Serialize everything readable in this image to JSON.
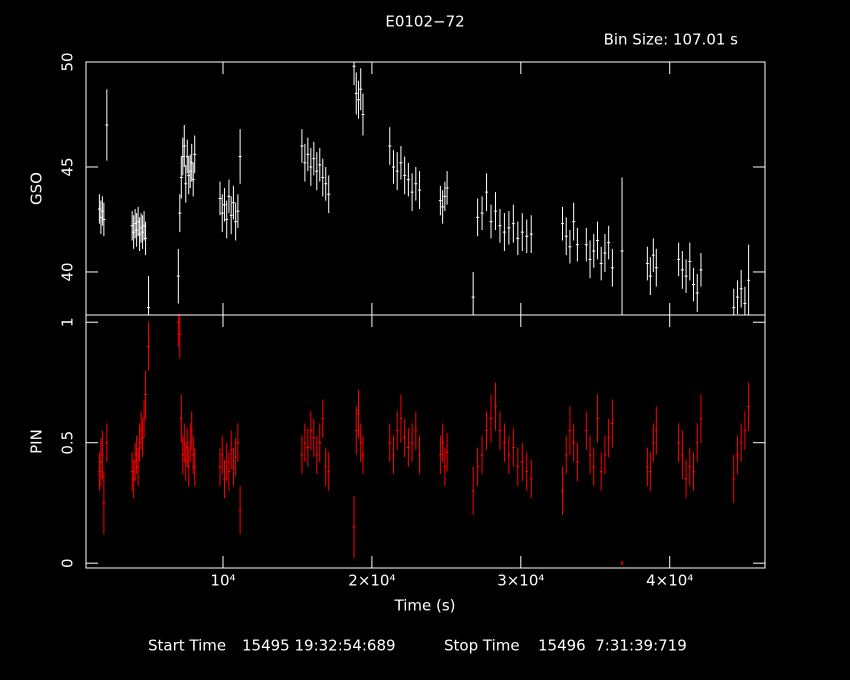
{
  "chart_data": {
    "type": "errorbar",
    "title": "E0102−72",
    "annotation": "Bin Size: 107.01 s",
    "xlabel": "Time (s)",
    "footer": {
      "start_label": "Start Time",
      "start": "15495 19:32:54:689",
      "stop_label": "Stop Time",
      "stop": "15496  7:31:39:719"
    },
    "xlim": [
      800,
      46400
    ],
    "xticks": [
      {
        "value": 10000,
        "label": "10⁴"
      },
      {
        "value": 20000,
        "label": "2×10⁴"
      },
      {
        "value": 30000,
        "label": "3×10⁴"
      },
      {
        "value": 40000,
        "label": "4×10⁴"
      }
    ],
    "x": [
      1700,
      1800,
      1900,
      2000,
      2200,
      3900,
      4000,
      4100,
      4200,
      4300,
      4400,
      4500,
      4600,
      4700,
      4800,
      5000,
      7000,
      7100,
      7200,
      7300,
      7400,
      7500,
      7600,
      7700,
      7800,
      7900,
      8000,
      8100,
      9800,
      9950,
      10100,
      10250,
      10400,
      10550,
      10700,
      10850,
      11000,
      11150,
      15300,
      15500,
      15700,
      15900,
      16100,
      16300,
      16500,
      16700,
      16900,
      17100,
      18800,
      18950,
      19100,
      19250,
      19400,
      21200,
      21450,
      21700,
      21950,
      22200,
      22450,
      22700,
      22950,
      23200,
      24600,
      24750,
      24900,
      25050,
      26800,
      27100,
      27400,
      27700,
      28000,
      28300,
      28600,
      28900,
      29200,
      29500,
      29800,
      30100,
      30400,
      30700,
      32800,
      33050,
      33300,
      33550,
      33800,
      34400,
      34650,
      34900,
      35150,
      35400,
      35650,
      35900,
      36150,
      36800,
      38500,
      38700,
      38900,
      39100,
      40600,
      40850,
      41100,
      41350,
      41600,
      41850,
      42100,
      44300,
      44550,
      44800,
      45050,
      45300
    ],
    "panels": [
      {
        "ylabel": "GSO",
        "color": "#ffffff",
        "ylim": [
          37.95,
          50
        ],
        "yticks": [
          40,
          45,
          50
        ],
        "values": [
          43,
          42.6,
          42.9,
          42.5,
          47,
          42.2,
          41.9,
          42.3,
          42.0,
          42.4,
          41.8,
          42.1,
          41.9,
          42.2,
          41.6,
          38.3,
          39.8,
          42.8,
          44.5,
          45.5,
          46,
          44.2,
          45.5,
          44.6,
          44.8,
          45.2,
          44.4,
          45.6,
          43.5,
          42.8,
          43.2,
          42.5,
          43.6,
          42.7,
          43.3,
          42.4,
          42.9,
          45.5,
          46,
          45.2,
          45.6,
          45,
          45.4,
          44.8,
          45.1,
          44.5,
          44.2,
          43.7,
          49.8,
          48.5,
          48.2,
          48.7,
          47.5,
          46,
          45,
          44.8,
          45.2,
          44.6,
          44.4,
          43.8,
          44.2,
          43.9,
          43.4,
          43.1,
          43.6,
          44,
          38.8,
          42.6,
          42.8,
          43.8,
          42.4,
          42.9,
          42.2,
          41.9,
          42.1,
          42.3,
          41.6,
          41.9,
          41.7,
          41.8,
          42.3,
          41.7,
          41.2,
          42.4,
          41.3,
          41.3,
          40.6,
          41,
          41.5,
          40.4,
          40.9,
          41.4,
          40.2,
          41,
          40.4,
          39.8,
          40.8,
          40.2,
          40.6,
          40.1,
          39.8,
          40.5,
          39.4,
          39,
          40.1,
          38.3,
          38.8,
          39.2,
          38.5,
          39.6
        ],
        "errors": [
          0.7,
          0.8,
          0.7,
          0.8,
          1.7,
          0.7,
          0.8,
          0.7,
          0.8,
          0.7,
          0.8,
          0.7,
          0.8,
          0.7,
          0.8,
          1.5,
          1.3,
          0.9,
          1,
          0.9,
          1,
          0.9,
          0.8,
          0.9,
          0.8,
          0.9,
          0.8,
          0.9,
          0.8,
          0.9,
          0.8,
          0.9,
          0.8,
          0.9,
          0.8,
          0.9,
          0.8,
          1.3,
          0.8,
          0.9,
          0.8,
          0.9,
          0.8,
          0.9,
          0.8,
          0.9,
          0.8,
          0.9,
          0.9,
          1,
          0.9,
          1,
          1,
          0.9,
          0.8,
          0.9,
          0.8,
          0.9,
          0.8,
          0.9,
          0.8,
          0.9,
          0.7,
          0.8,
          0.7,
          0.8,
          1.2,
          0.9,
          0.8,
          0.9,
          0.8,
          0.9,
          0.8,
          0.9,
          0.8,
          0.9,
          0.8,
          0.9,
          0.8,
          0.9,
          0.8,
          0.9,
          0.8,
          0.9,
          0.8,
          0.8,
          0.9,
          0.8,
          0.9,
          0.8,
          0.9,
          0.8,
          0.9,
          3.5,
          0.8,
          0.9,
          0.8,
          0.9,
          0.8,
          0.9,
          0.8,
          0.9,
          0.8,
          0.9,
          0.8,
          0.9,
          0.8,
          0.9,
          0.8,
          1.7
        ]
      },
      {
        "ylabel": "PIN",
        "color": "#ff0000",
        "ylim": [
          -0.02,
          1.03
        ],
        "yticks": [
          0,
          0.5,
          1
        ],
        "values": [
          0.38,
          0.42,
          0.45,
          0.25,
          0.5,
          0.38,
          0.35,
          0.42,
          0.45,
          0.4,
          0.5,
          0.55,
          0.52,
          0.6,
          0.7,
          0.9,
          1.0,
          0.95,
          0.6,
          0.45,
          0.5,
          0.42,
          0.48,
          0.4,
          0.5,
          0.55,
          0.45,
          0.4,
          0.4,
          0.45,
          0.35,
          0.42,
          0.38,
          0.47,
          0.4,
          0.44,
          0.5,
          0.22,
          0.45,
          0.5,
          0.48,
          0.55,
          0.52,
          0.45,
          0.5,
          0.6,
          0.4,
          0.38,
          0.15,
          0.55,
          0.62,
          0.5,
          0.45,
          0.5,
          0.45,
          0.55,
          0.6,
          0.52,
          0.48,
          0.5,
          0.55,
          0.45,
          0.45,
          0.5,
          0.4,
          0.46,
          0.3,
          0.4,
          0.45,
          0.55,
          0.6,
          0.65,
          0.55,
          0.5,
          0.45,
          0.48,
          0.4,
          0.42,
          0.38,
          0.35,
          0.3,
          0.45,
          0.55,
          0.5,
          0.42,
          0.55,
          0.45,
          0.4,
          0.6,
          0.38,
          0.45,
          0.52,
          0.58,
          0,
          0.4,
          0.38,
          0.5,
          0.55,
          0.5,
          0.45,
          0.35,
          0.4,
          0.38,
          0.5,
          0.6,
          0.35,
          0.45,
          0.5,
          0.55,
          0.65
        ],
        "errors": [
          0.08,
          0.1,
          0.1,
          0.13,
          0.08,
          0.08,
          0.08,
          0.08,
          0.08,
          0.08,
          0.08,
          0.08,
          0.08,
          0.08,
          0.1,
          0.1,
          0.1,
          0.1,
          0.1,
          0.08,
          0.08,
          0.08,
          0.08,
          0.08,
          0.08,
          0.08,
          0.08,
          0.08,
          0.08,
          0.08,
          0.08,
          0.08,
          0.08,
          0.08,
          0.08,
          0.08,
          0.08,
          0.1,
          0.08,
          0.08,
          0.08,
          0.08,
          0.08,
          0.08,
          0.08,
          0.08,
          0.08,
          0.08,
          0.13,
          0.1,
          0.1,
          0.08,
          0.08,
          0.08,
          0.08,
          0.08,
          0.1,
          0.08,
          0.08,
          0.08,
          0.08,
          0.08,
          0.08,
          0.08,
          0.08,
          0.08,
          0.1,
          0.08,
          0.08,
          0.08,
          0.1,
          0.1,
          0.08,
          0.08,
          0.08,
          0.08,
          0.08,
          0.08,
          0.08,
          0.08,
          0.1,
          0.08,
          0.1,
          0.08,
          0.08,
          0.08,
          0.08,
          0.08,
          0.1,
          0.08,
          0.08,
          0.08,
          0.1,
          0.01,
          0.08,
          0.08,
          0.08,
          0.1,
          0.08,
          0.1,
          0.08,
          0.08,
          0.08,
          0.08,
          0.1,
          0.1,
          0.08,
          0.08,
          0.08,
          0.1
        ]
      }
    ]
  }
}
